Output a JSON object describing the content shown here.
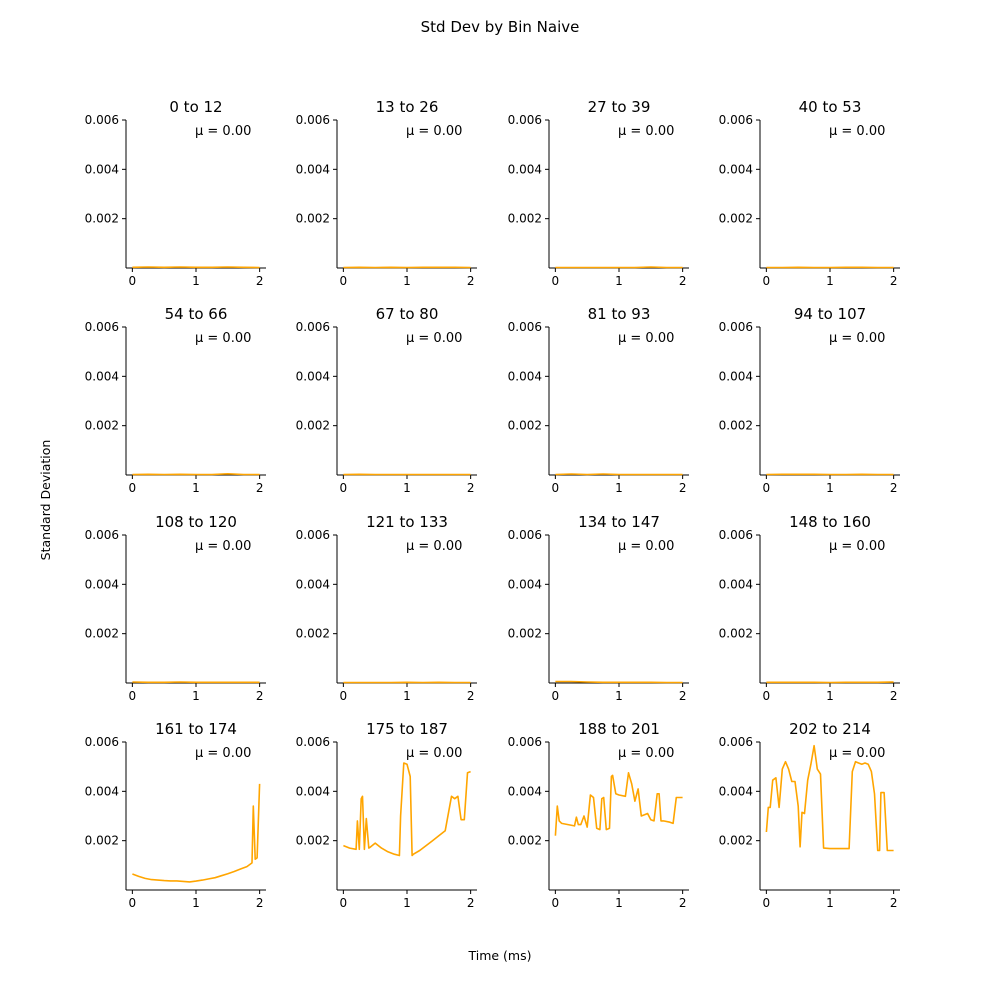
{
  "title": "Std Dev by Bin Naive",
  "xlabel": "Time (ms)",
  "ylabel": "Standard Deviation",
  "mu_label": "μ = 0.00",
  "colors": {
    "line": "#ffa500",
    "axis": "#000000",
    "background": "#ffffff"
  },
  "chart_data": {
    "type": "line",
    "layout": "4x4 small multiples",
    "xlim": [
      -0.1,
      2.1
    ],
    "ylim": [
      0,
      0.006
    ],
    "xticks": [
      "0",
      "1",
      "2"
    ],
    "yticks": [
      "0.002",
      "0.004",
      "0.006"
    ],
    "grid": false,
    "legend": "none",
    "panels": [
      {
        "title": "0 to 12",
        "annotation": "μ = 0.00",
        "x": [
          0,
          0.25,
          0.5,
          0.75,
          1.0,
          1.25,
          1.5,
          1.75,
          2.0
        ],
        "y": [
          3e-05,
          4e-05,
          3e-05,
          4e-05,
          3e-05,
          3e-05,
          4e-05,
          3e-05,
          2e-05
        ]
      },
      {
        "title": "13 to 26",
        "annotation": "μ = 0.00",
        "x": [
          0,
          0.25,
          0.5,
          0.75,
          1.0,
          1.25,
          1.5,
          1.75,
          2.0
        ],
        "y": [
          2e-05,
          3e-05,
          2e-05,
          3e-05,
          2e-05,
          3e-05,
          3e-05,
          3e-05,
          2e-05
        ]
      },
      {
        "title": "27 to 39",
        "annotation": "μ = 0.00",
        "x": [
          0,
          0.25,
          0.5,
          0.75,
          1.0,
          1.25,
          1.5,
          1.75,
          2.0
        ],
        "y": [
          2e-05,
          2e-05,
          2e-05,
          2e-05,
          2e-05,
          2e-05,
          4e-05,
          2e-05,
          2e-05
        ]
      },
      {
        "title": "40 to 53",
        "annotation": "μ = 0.00",
        "x": [
          0,
          0.25,
          0.5,
          0.75,
          1.0,
          1.25,
          1.5,
          1.75,
          2.0
        ],
        "y": [
          2e-05,
          2e-05,
          3e-05,
          2e-05,
          2e-05,
          3e-05,
          3e-05,
          2e-05,
          2e-05
        ]
      },
      {
        "title": "54 to 66",
        "annotation": "μ = 0.00",
        "x": [
          0,
          0.25,
          0.5,
          0.75,
          1.0,
          1.25,
          1.5,
          1.75,
          2.0
        ],
        "y": [
          2e-05,
          3e-05,
          2e-05,
          3e-05,
          2e-05,
          2e-05,
          5e-05,
          2e-05,
          2e-05
        ]
      },
      {
        "title": "67 to 80",
        "annotation": "μ = 0.00",
        "x": [
          0,
          0.25,
          0.5,
          0.75,
          1.0,
          1.25,
          1.5,
          1.75,
          2.0
        ],
        "y": [
          2e-05,
          3e-05,
          2e-05,
          2e-05,
          2e-05,
          2e-05,
          2e-05,
          2e-05,
          2e-05
        ]
      },
      {
        "title": "81 to 93",
        "annotation": "μ = 0.00",
        "x": [
          0,
          0.25,
          0.5,
          0.75,
          1.0,
          1.25,
          1.5,
          1.75,
          2.0
        ],
        "y": [
          2e-05,
          4e-05,
          2e-05,
          4e-05,
          2e-05,
          2e-05,
          2e-05,
          2e-05,
          2e-05
        ]
      },
      {
        "title": "94 to 107",
        "annotation": "μ = 0.00",
        "x": [
          0,
          0.25,
          0.5,
          0.75,
          1.0,
          1.25,
          1.5,
          1.75,
          2.0
        ],
        "y": [
          2e-05,
          3e-05,
          3e-05,
          3e-05,
          2e-05,
          2e-05,
          3e-05,
          2e-05,
          2e-05
        ]
      },
      {
        "title": "108 to 120",
        "annotation": "μ = 0.00",
        "x": [
          0,
          0.25,
          0.5,
          0.75,
          1.0,
          1.25,
          1.5,
          1.75,
          2.0
        ],
        "y": [
          4e-05,
          3e-05,
          3e-05,
          4e-05,
          3e-05,
          3e-05,
          3e-05,
          3e-05,
          3e-05
        ]
      },
      {
        "title": "121 to 133",
        "annotation": "μ = 0.00",
        "x": [
          0,
          0.25,
          0.5,
          0.75,
          1.0,
          1.25,
          1.5,
          1.75,
          2.0
        ],
        "y": [
          2e-05,
          2e-05,
          2e-05,
          2e-05,
          3e-05,
          2e-05,
          3e-05,
          2e-05,
          2e-05
        ]
      },
      {
        "title": "134 to 147",
        "annotation": "μ = 0.00",
        "x": [
          0,
          0.25,
          0.5,
          0.75,
          1.0,
          1.25,
          1.5,
          1.75,
          2.0
        ],
        "y": [
          6e-05,
          6e-05,
          4e-05,
          3e-05,
          3e-05,
          3e-05,
          3e-05,
          2e-05,
          2e-05
        ]
      },
      {
        "title": "148 to 160",
        "annotation": "μ = 0.00",
        "x": [
          0,
          0.25,
          0.5,
          0.75,
          1.0,
          1.25,
          1.5,
          1.75,
          2.0
        ],
        "y": [
          3e-05,
          3e-05,
          3e-05,
          3e-05,
          2e-05,
          3e-05,
          3e-05,
          3e-05,
          4e-05
        ]
      },
      {
        "title": "161 to 174",
        "annotation": "μ = 0.00",
        "x": [
          0,
          0.1,
          0.2,
          0.3,
          0.4,
          0.5,
          0.6,
          0.7,
          0.8,
          0.9,
          1.0,
          1.1,
          1.2,
          1.3,
          1.4,
          1.5,
          1.6,
          1.7,
          1.8,
          1.88,
          1.9,
          1.93,
          1.96,
          2.0
        ],
        "y": [
          0.00065,
          0.00055,
          0.00047,
          0.00042,
          0.0004,
          0.00038,
          0.00037,
          0.00037,
          0.00035,
          0.00033,
          0.00036,
          0.0004,
          0.00045,
          0.0005,
          0.00058,
          0.00066,
          0.00075,
          0.00085,
          0.00095,
          0.0011,
          0.0034,
          0.00125,
          0.0013,
          0.0043
        ]
      },
      {
        "title": "175 to 187",
        "annotation": "μ = 0.00",
        "x": [
          0,
          0.1,
          0.2,
          0.22,
          0.25,
          0.28,
          0.3,
          0.33,
          0.36,
          0.4,
          0.43,
          0.5,
          0.6,
          0.7,
          0.8,
          0.88,
          0.9,
          0.95,
          1.0,
          1.05,
          1.08,
          1.1,
          1.2,
          1.3,
          1.4,
          1.5,
          1.6,
          1.7,
          1.75,
          1.8,
          1.85,
          1.9,
          1.95,
          2.0
        ],
        "y": [
          0.0018,
          0.0017,
          0.00165,
          0.0028,
          0.00165,
          0.0037,
          0.0038,
          0.00165,
          0.0029,
          0.0017,
          0.00175,
          0.0019,
          0.0017,
          0.00155,
          0.00145,
          0.0014,
          0.003,
          0.00515,
          0.0051,
          0.0046,
          0.0014,
          0.00145,
          0.0016,
          0.0018,
          0.002,
          0.0022,
          0.0024,
          0.0038,
          0.0037,
          0.0038,
          0.00285,
          0.00285,
          0.00475,
          0.0048
        ]
      },
      {
        "title": "188 to 201",
        "annotation": "μ = 0.00",
        "x": [
          0,
          0.03,
          0.06,
          0.1,
          0.2,
          0.3,
          0.33,
          0.36,
          0.4,
          0.45,
          0.5,
          0.55,
          0.6,
          0.65,
          0.7,
          0.73,
          0.76,
          0.8,
          0.85,
          0.88,
          0.9,
          0.95,
          1.0,
          1.1,
          1.15,
          1.2,
          1.25,
          1.3,
          1.35,
          1.4,
          1.45,
          1.5,
          1.55,
          1.6,
          1.63,
          1.66,
          1.7,
          1.8,
          1.85,
          1.9,
          2.0
        ],
        "y": [
          0.0022,
          0.0034,
          0.0028,
          0.0027,
          0.00265,
          0.0026,
          0.00295,
          0.00265,
          0.00265,
          0.003,
          0.00255,
          0.00385,
          0.00375,
          0.0025,
          0.00245,
          0.0037,
          0.00375,
          0.00245,
          0.0025,
          0.0046,
          0.00465,
          0.0039,
          0.00385,
          0.0038,
          0.00475,
          0.0043,
          0.0036,
          0.0041,
          0.003,
          0.00305,
          0.0031,
          0.00285,
          0.0028,
          0.0039,
          0.0039,
          0.0028,
          0.0028,
          0.00275,
          0.0027,
          0.00375,
          0.00375
        ]
      },
      {
        "title": "202 to 214",
        "annotation": "μ = 0.00",
        "x": [
          0,
          0.03,
          0.06,
          0.1,
          0.15,
          0.2,
          0.25,
          0.3,
          0.35,
          0.4,
          0.45,
          0.5,
          0.53,
          0.56,
          0.6,
          0.65,
          0.7,
          0.75,
          0.8,
          0.85,
          0.9,
          1.0,
          1.1,
          1.2,
          1.3,
          1.35,
          1.4,
          1.45,
          1.5,
          1.55,
          1.6,
          1.65,
          1.7,
          1.75,
          1.78,
          1.8,
          1.85,
          1.9,
          1.95,
          2.0
        ],
        "y": [
          0.00235,
          0.00335,
          0.00335,
          0.00445,
          0.00455,
          0.00335,
          0.0049,
          0.0052,
          0.0049,
          0.0044,
          0.0044,
          0.0034,
          0.00175,
          0.00315,
          0.0031,
          0.00445,
          0.0051,
          0.00585,
          0.0049,
          0.0047,
          0.0017,
          0.00168,
          0.00168,
          0.00168,
          0.00168,
          0.0048,
          0.0052,
          0.00515,
          0.0051,
          0.00515,
          0.0051,
          0.0048,
          0.0039,
          0.0016,
          0.0016,
          0.00395,
          0.00395,
          0.0016,
          0.0016,
          0.0016
        ]
      }
    ]
  }
}
